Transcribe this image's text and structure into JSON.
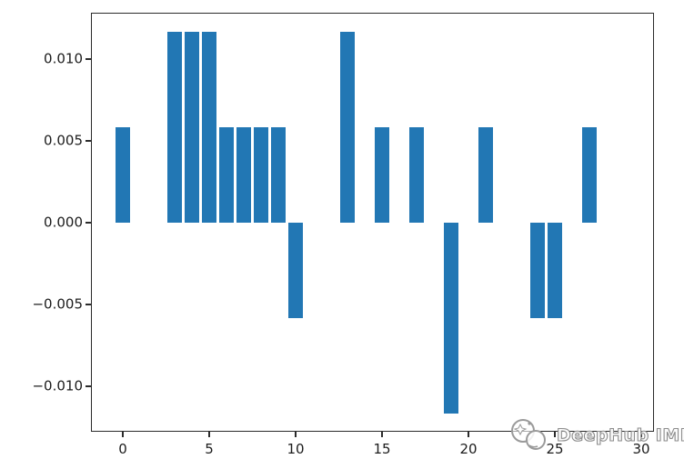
{
  "chart_data": {
    "type": "bar",
    "title": "",
    "xlabel": "",
    "ylabel": "",
    "grid": false,
    "legend_position": "none",
    "bar_color": "#2277b4",
    "bar_width": 0.8,
    "x": [
      0,
      1,
      2,
      3,
      4,
      5,
      6,
      7,
      8,
      9,
      10,
      11,
      12,
      13,
      14,
      15,
      16,
      17,
      18,
      19,
      20,
      21,
      22,
      23,
      24,
      25,
      26,
      27,
      28,
      29
    ],
    "values": [
      0.00583,
      0,
      0,
      0.01167,
      0.01167,
      0.01167,
      0.00583,
      0.00583,
      0.00583,
      0.00583,
      -0.00583,
      0,
      0,
      0.01167,
      0,
      0.00583,
      0,
      0.00583,
      0,
      -0.01167,
      0,
      0.00583,
      0,
      0,
      -0.00583,
      -0.00583,
      0,
      0.00583,
      0,
      0
    ],
    "xlim": [
      -1.75,
      30.9
    ],
    "ylim": [
      -0.012833,
      0.012833
    ],
    "x_ticks": [
      0,
      5,
      10,
      15,
      20,
      25,
      30
    ],
    "x_tick_labels": [
      "0",
      "5",
      "10",
      "15",
      "20",
      "25",
      "30"
    ],
    "y_ticks": [
      0.01,
      0.005,
      0.0,
      -0.005,
      -0.01
    ],
    "y_tick_labels": [
      "0.010",
      "0.005",
      "0.000",
      "−0.005",
      "−0.010"
    ],
    "spine_color": "#2b2b2b",
    "background_color": "#ffffff"
  },
  "watermark": {
    "text": "DeepHub IMBA",
    "logo": "deephub-logo"
  }
}
